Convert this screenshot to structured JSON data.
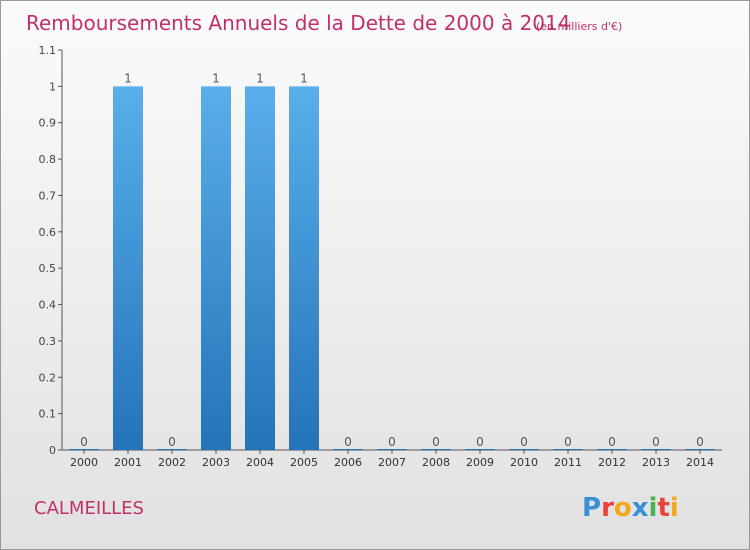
{
  "header": {
    "title": "Remboursements Annuels de la Dette de 2000 à 2014",
    "unit": "(en milliers d'€)"
  },
  "commune": "CALMEILLES",
  "logo": {
    "letters": [
      "P",
      "r",
      "o",
      "x",
      "i",
      "t",
      "i"
    ],
    "colors": [
      "#3a8fd6",
      "#e8433a",
      "#f2a81d",
      "#3a8fd6",
      "#4caf50",
      "#e8433a",
      "#f2a81d"
    ]
  },
  "colors": {
    "bar_top": "#5aaeea",
    "bar_bottom": "#2474b8",
    "title": "#c0306a"
  },
  "chart_data": {
    "type": "bar",
    "categories": [
      "2000",
      "2001",
      "2002",
      "2003",
      "2004",
      "2005",
      "2006",
      "2007",
      "2008",
      "2009",
      "2010",
      "2011",
      "2012",
      "2013",
      "2014"
    ],
    "values": [
      0,
      1,
      0,
      1,
      1,
      1,
      0,
      0,
      0,
      0,
      0,
      0,
      0,
      0,
      0
    ],
    "data_labels": [
      "0",
      "1",
      "0",
      "1",
      "1",
      "1",
      "0",
      "0",
      "0",
      "0",
      "0",
      "0",
      "0",
      "0",
      "0"
    ],
    "title": "Remboursements Annuels de la Dette de 2000 à 2014",
    "xlabel": "",
    "ylabel": "",
    "ylim": [
      0,
      1.1
    ],
    "yticks": [
      0,
      0.1,
      0.2,
      0.3,
      0.4,
      0.5,
      0.6,
      0.7,
      0.8,
      0.9,
      1,
      1.1
    ],
    "ytick_labels": [
      "0",
      "0.1",
      "0.2",
      "0.3",
      "0.4",
      "0.5",
      "0.6",
      "0.7",
      "0.8",
      "0.9",
      "1",
      "1.1"
    ],
    "grid": false,
    "legend": "none"
  }
}
